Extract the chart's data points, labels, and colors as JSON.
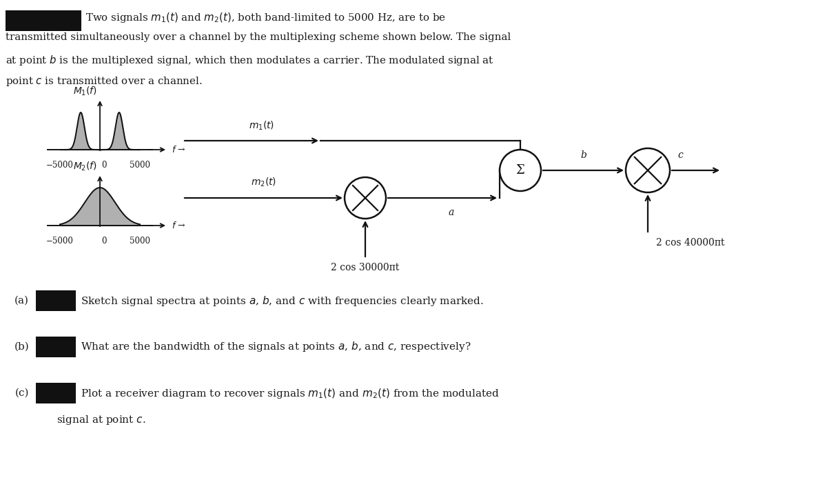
{
  "bg_color": "#ffffff",
  "text_color": "#1a1a1a",
  "redacted_color": "#111111",
  "spectrum_fill": "#b0b0b0",
  "spectrum_line": "#111111",
  "diagram_line": "#111111",
  "M1_label": "$M_1(f)$",
  "M2_label": "$M_2(f)$",
  "m1t_label": "$m_1(t)$",
  "m2t_label": "$m_2(t)$",
  "freq_neg": "−5000",
  "freq_pos": "5000",
  "freq_arrow": "$f$ →",
  "zero_label": "0",
  "sigma_label": "Σ",
  "b_label": "b",
  "c_label": "c",
  "a_label": "a",
  "carrier1_label": "2 cos 30000πt",
  "carrier2_label": "2 cos 40000πt",
  "part_a_num": "(a)",
  "part_a_text": "Sketch signal spectra at points $a$, $b$, and $c$ with frequencies clearly marked.",
  "part_b_num": "(b)",
  "part_b_text": "What are the bandwidth of the signals at points $a$, $b$, and $c$, respectively?",
  "part_c_num": "(c)",
  "part_c_text1": "Plot a receiver diagram to recover signals $m_1(t)$ and $m_2(t)$ from the modulated",
  "part_c_text2": "signal at point $c$.",
  "header_line1": "Two signals $m_1(t)$ and $m_2(t)$, both band-limited to 5000 Hz, are to be",
  "header_line2": "transmitted simultaneously over a channel by the multiplexing scheme shown below. The signal",
  "header_line3": "at point $b$ is the multiplexed signal, which then modulates a carrier. The modulated signal at",
  "header_line4": "point $c$ is transmitted over a channel."
}
